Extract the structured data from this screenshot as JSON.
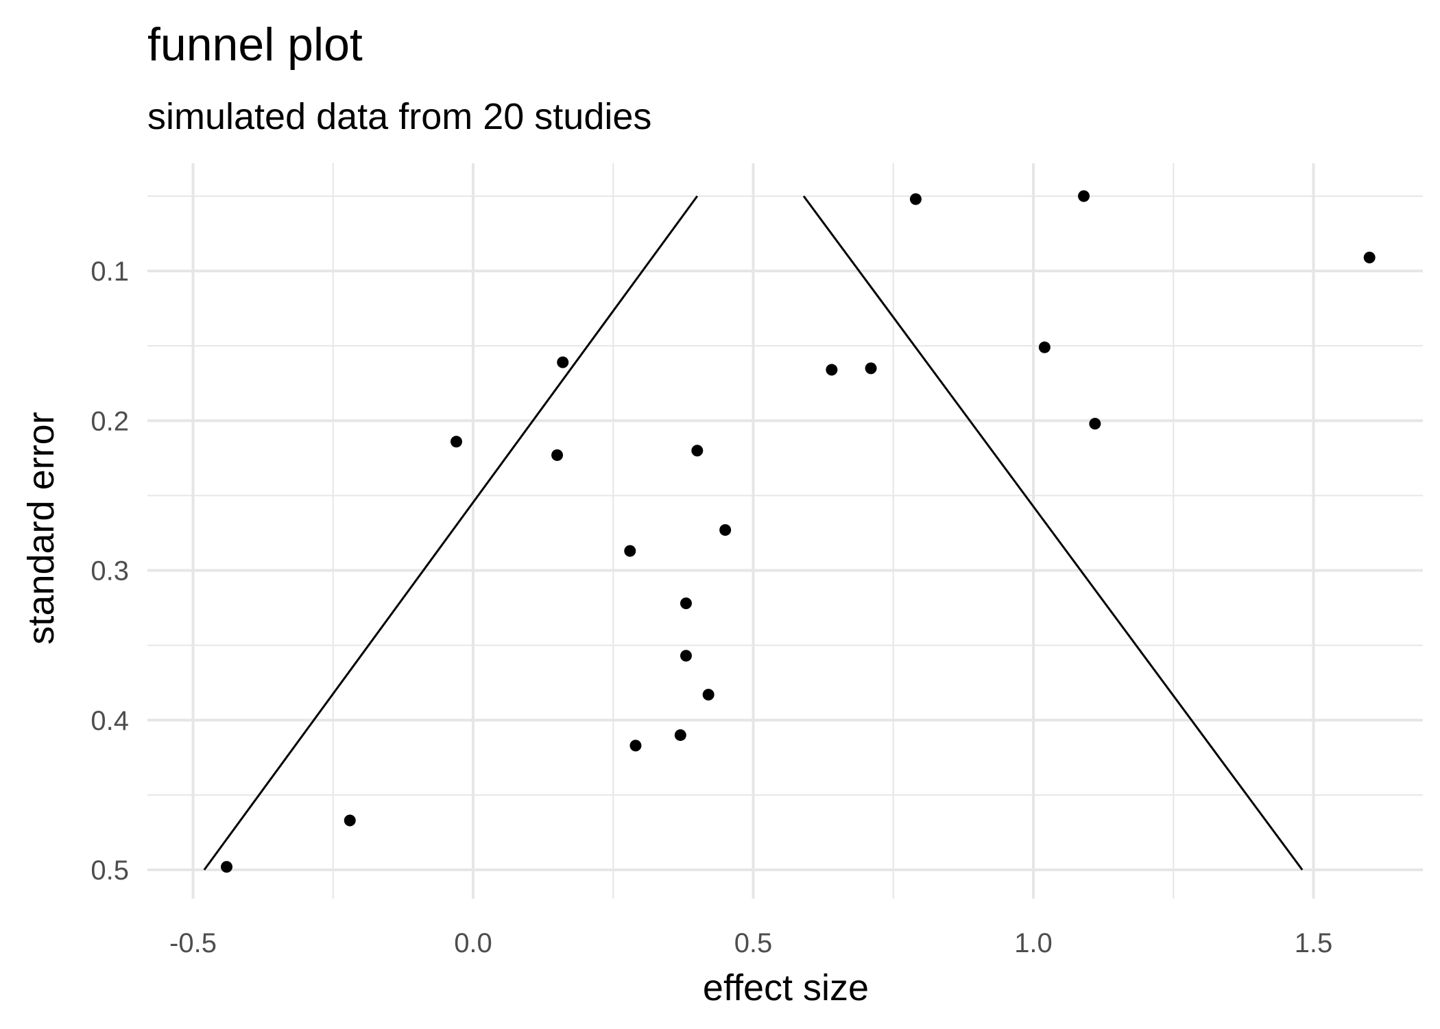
{
  "chart_data": {
    "type": "scatter",
    "title": "funnel plot",
    "subtitle": "simulated data from 20 studies",
    "xlabel": "effect size",
    "ylabel": "standard error",
    "xlim": [
      -0.58,
      1.7
    ],
    "ylim": [
      0.05,
      0.51
    ],
    "y_reversed": true,
    "grid": true,
    "x_ticks": [
      -0.5,
      0.0,
      0.5,
      1.0,
      1.5
    ],
    "x_tick_labels": [
      "-0.5",
      "0.0",
      "0.5",
      "1.0",
      "1.5"
    ],
    "y_ticks": [
      0.1,
      0.2,
      0.3,
      0.4,
      0.5
    ],
    "y_tick_labels": [
      "0.1",
      "0.2",
      "0.3",
      "0.4",
      "0.5"
    ],
    "points": [
      {
        "x": -0.44,
        "y": 0.498
      },
      {
        "x": -0.22,
        "y": 0.467
      },
      {
        "x": -0.03,
        "y": 0.214
      },
      {
        "x": 0.15,
        "y": 0.223
      },
      {
        "x": 0.16,
        "y": 0.161
      },
      {
        "x": 0.28,
        "y": 0.287
      },
      {
        "x": 0.29,
        "y": 0.417
      },
      {
        "x": 0.37,
        "y": 0.41
      },
      {
        "x": 0.38,
        "y": 0.357
      },
      {
        "x": 0.38,
        "y": 0.322
      },
      {
        "x": 0.4,
        "y": 0.22
      },
      {
        "x": 0.42,
        "y": 0.383
      },
      {
        "x": 0.45,
        "y": 0.273
      },
      {
        "x": 0.64,
        "y": 0.166
      },
      {
        "x": 0.71,
        "y": 0.165
      },
      {
        "x": 0.79,
        "y": 0.052
      },
      {
        "x": 1.02,
        "y": 0.151
      },
      {
        "x": 1.09,
        "y": 0.05
      },
      {
        "x": 1.11,
        "y": 0.202
      },
      {
        "x": 1.6,
        "y": 0.091
      }
    ],
    "funnel_lines": [
      {
        "from": {
          "x": 0.4,
          "y": 0.05
        },
        "to": {
          "x": -0.48,
          "y": 0.5
        }
      },
      {
        "from": {
          "x": 0.59,
          "y": 0.05
        },
        "to": {
          "x": 1.48,
          "y": 0.5
        }
      }
    ]
  }
}
